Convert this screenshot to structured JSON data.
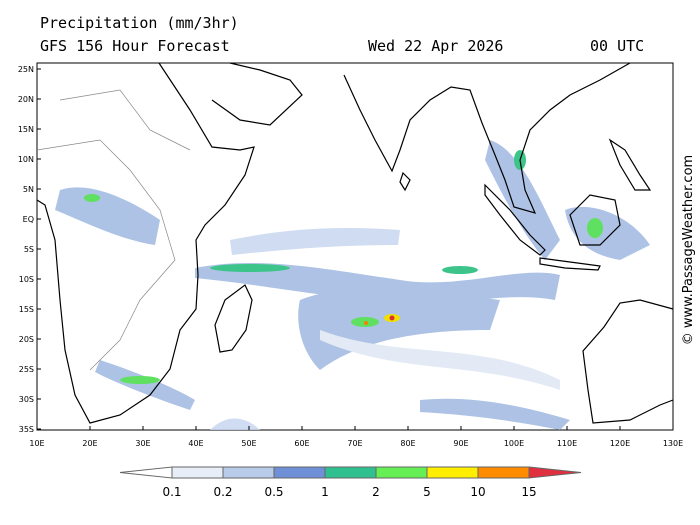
{
  "header": {
    "title": "Precipitation (mm/3hr)",
    "subtitle": "GFS 156 Hour Forecast",
    "date": "Wed 22 Apr 2026",
    "time": "00 UTC"
  },
  "lat_labels": [
    "25N",
    "20N",
    "15N",
    "10N",
    "5N",
    "EQ",
    "5S",
    "10S",
    "15S",
    "20S",
    "25S",
    "30S",
    "35S"
  ],
  "lon_labels": [
    "10E",
    "20E",
    "30E",
    "40E",
    "50E",
    "60E",
    "70E",
    "80E",
    "90E",
    "100E",
    "110E",
    "120E",
    "130E"
  ],
  "legend": {
    "labels": [
      "0.1",
      "0.2",
      "0.5",
      "1",
      "2",
      "5",
      "10",
      "15"
    ]
  },
  "watermark": "© www.PassageWeather.com"
}
